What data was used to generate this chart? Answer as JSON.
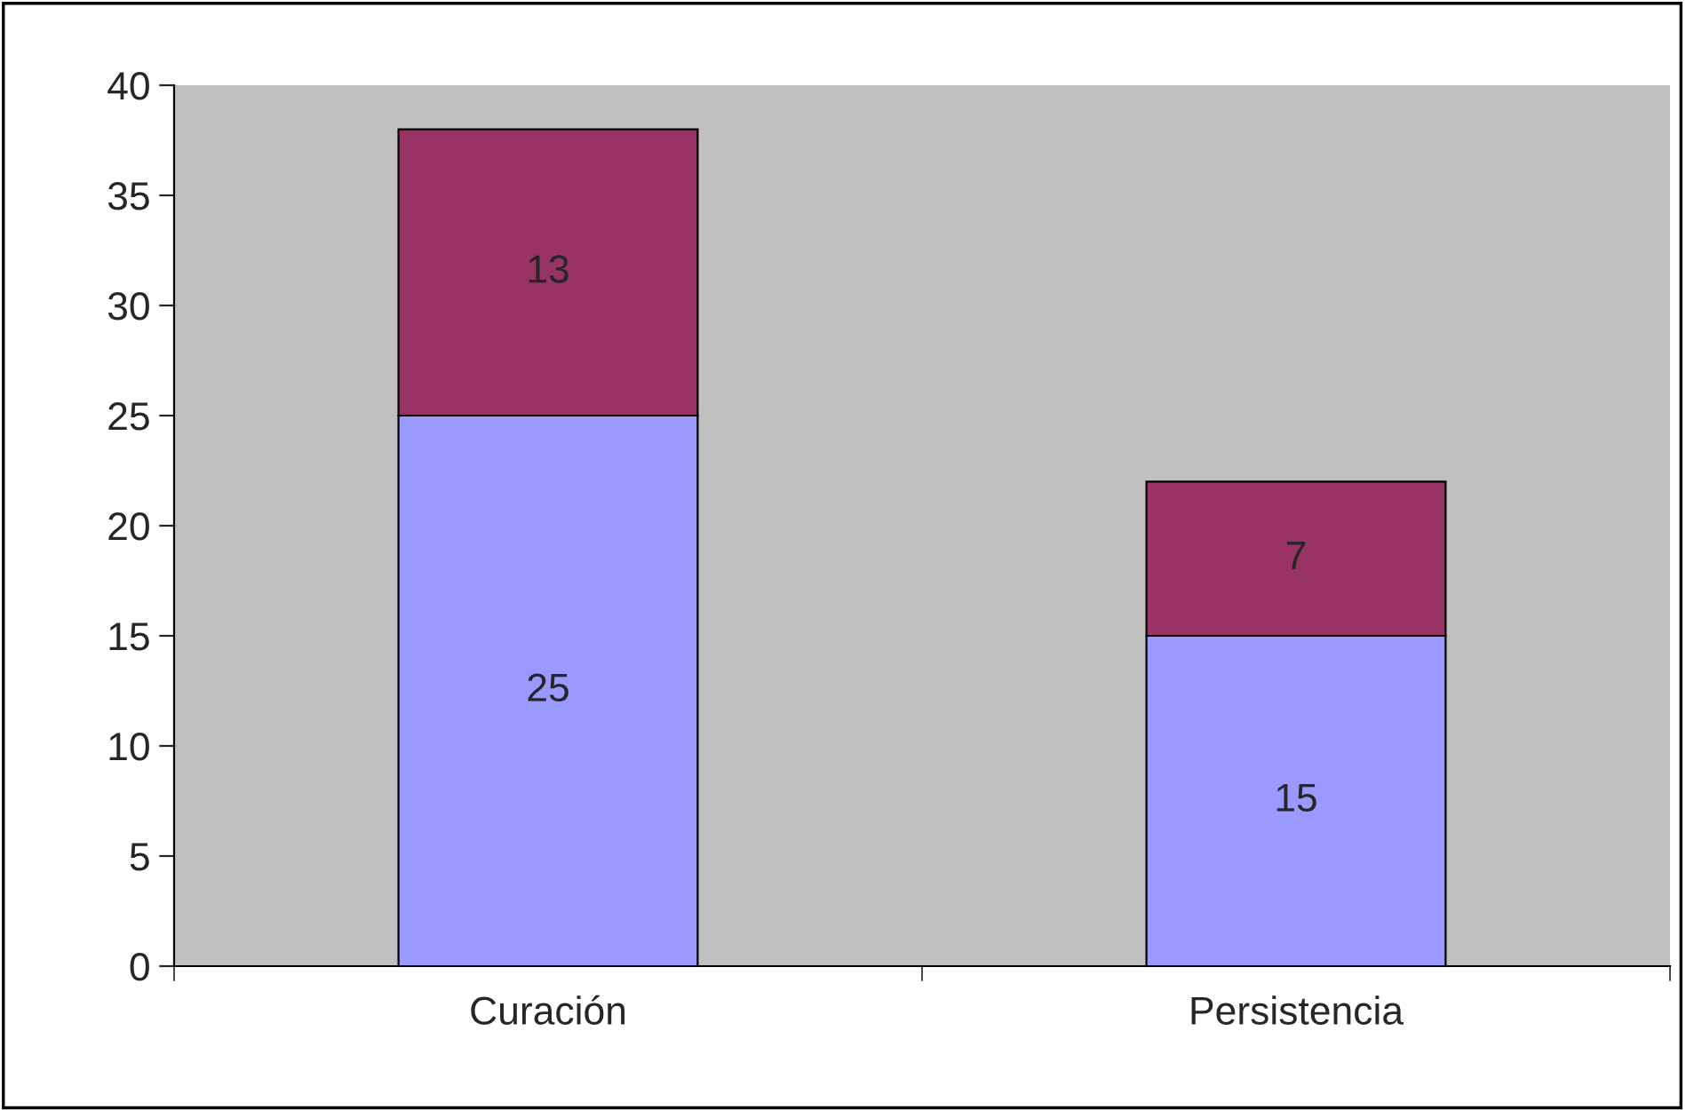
{
  "chart_data": {
    "type": "bar",
    "stacked": true,
    "categories": [
      "Curación",
      "Persistencia"
    ],
    "series": [
      {
        "color": "#9999ff",
        "values": [
          25,
          15
        ]
      },
      {
        "color": "#993366",
        "values": [
          13,
          7
        ]
      }
    ],
    "ylim": [
      0,
      40
    ],
    "yticks": [
      0,
      5,
      10,
      15,
      20,
      25,
      30,
      35,
      40
    ],
    "grid": false,
    "data_labels": true
  }
}
